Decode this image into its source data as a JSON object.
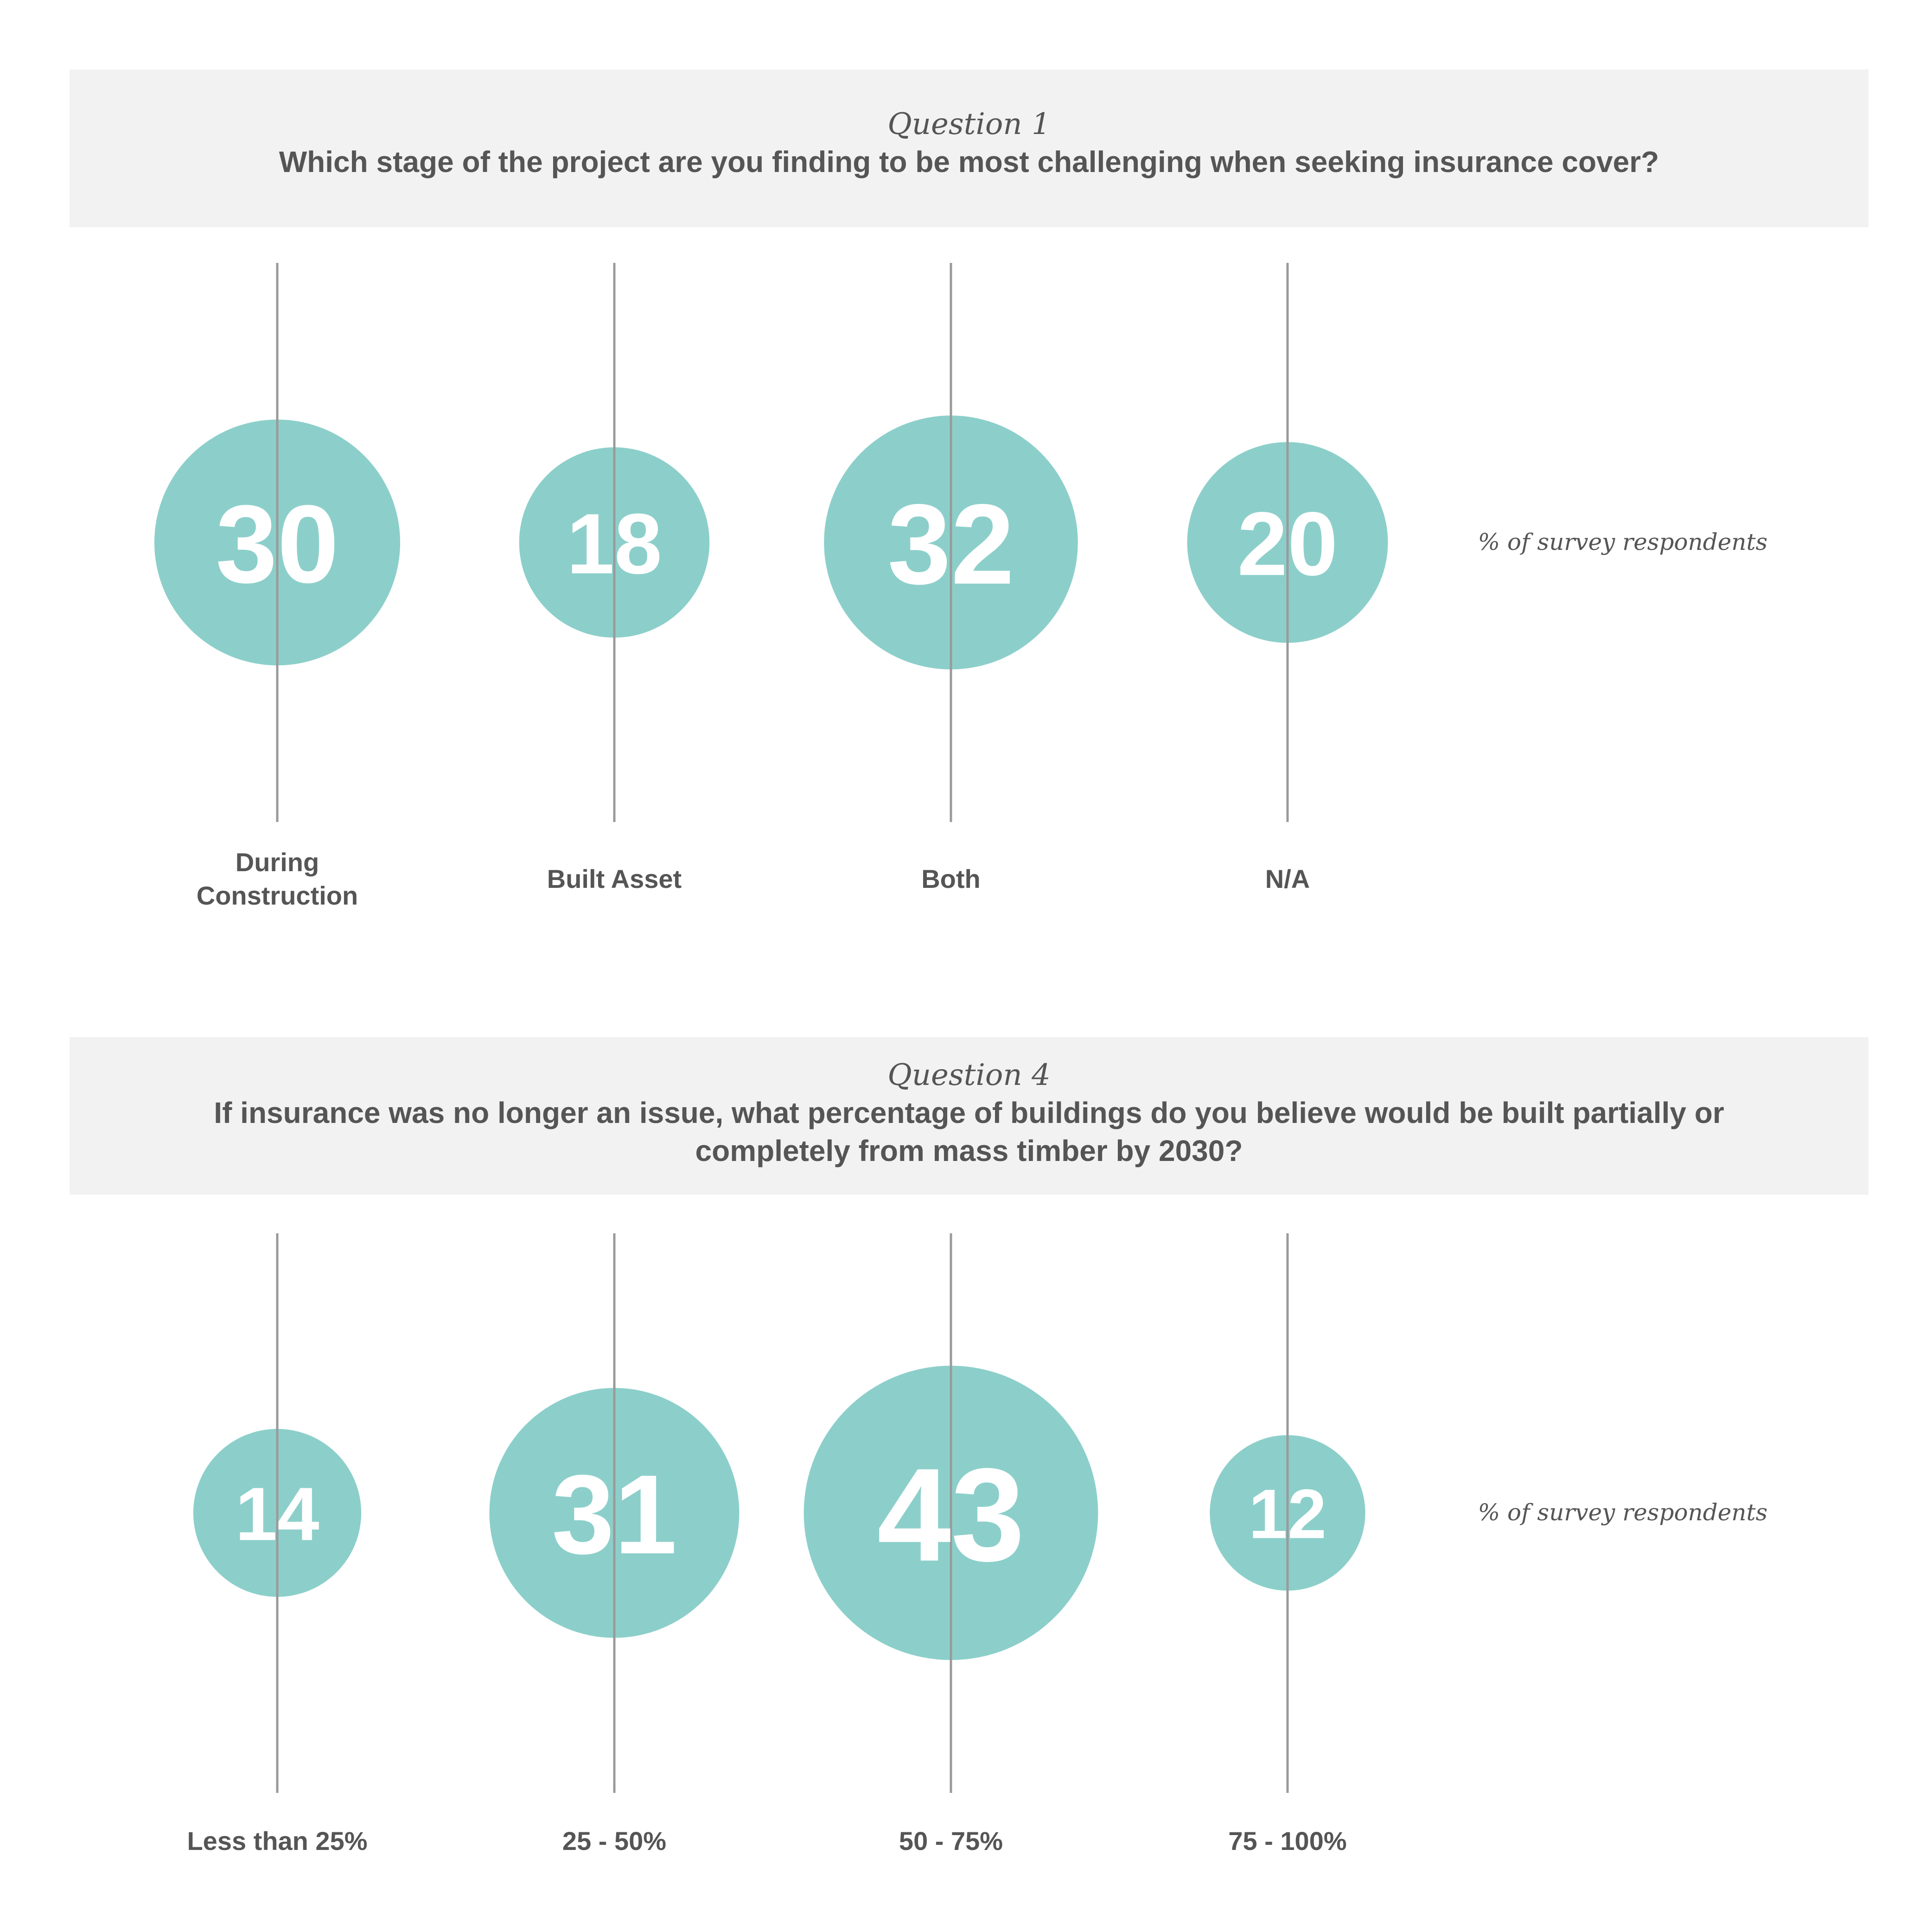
{
  "colors": {
    "bubble": "#8ccfca",
    "line": "#9a9a9a",
    "panel": "#f2f2f2",
    "text": "#555555"
  },
  "chart_data": [
    {
      "type": "bubble",
      "question_label": "Question 1",
      "title": "Which stage of the project are you finding to be most challenging when seeking insurance cover?",
      "unit_label": "% of survey respondents",
      "categories": [
        {
          "label_lines": [
            "During",
            "Construction"
          ],
          "value": 30
        },
        {
          "label_lines": [
            "Built Asset"
          ],
          "value": 18
        },
        {
          "label_lines": [
            "Both"
          ],
          "value": 32
        },
        {
          "label_lines": [
            "N/A"
          ],
          "value": 20
        }
      ]
    },
    {
      "type": "bubble",
      "question_label": "Question 4",
      "title": "If insurance was no longer an issue, what percentage of buildings do you believe would be built partially or completely from mass timber by 2030?",
      "unit_label": "% of survey respondents",
      "categories": [
        {
          "label_lines": [
            "Less than 25%"
          ],
          "value": 14
        },
        {
          "label_lines": [
            "25 - 50%"
          ],
          "value": 31
        },
        {
          "label_lines": [
            "50 - 75%"
          ],
          "value": 43
        },
        {
          "label_lines": [
            "75 - 100%"
          ],
          "value": 12
        }
      ]
    }
  ]
}
